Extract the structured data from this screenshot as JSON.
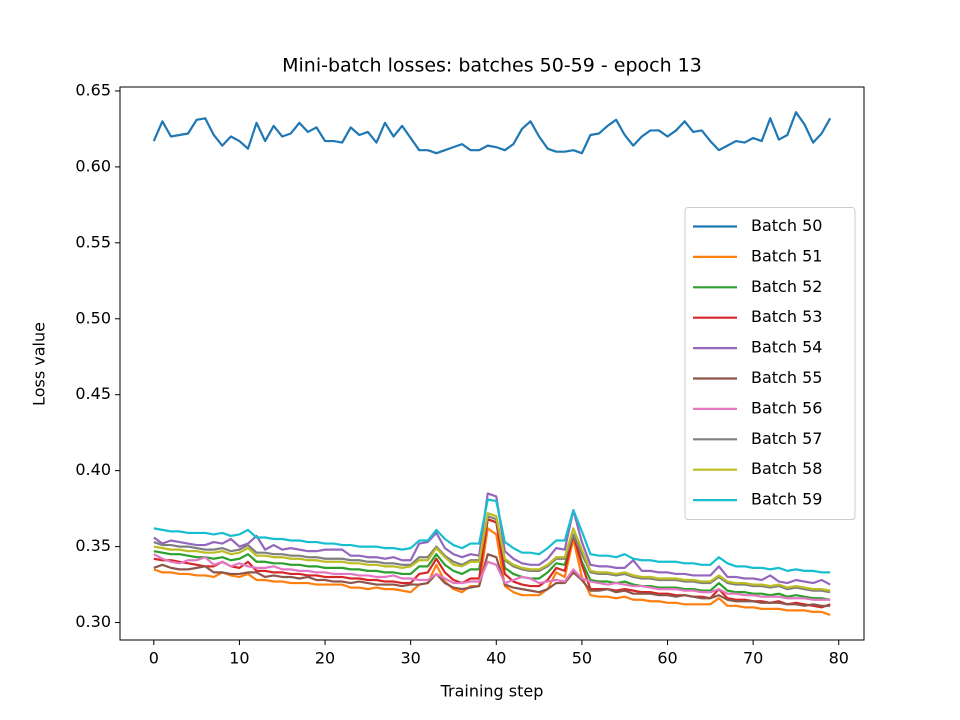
{
  "chart_data": {
    "type": "line",
    "title": "Mini-batch losses: batches 50-59 - epoch 13",
    "xlabel": "Training step",
    "ylabel": "Loss value",
    "xlim": [
      -3.95,
      82.95
    ],
    "ylim": [
      0.2885,
      0.6526
    ],
    "xticks": [
      0,
      10,
      20,
      30,
      40,
      50,
      60,
      70,
      80
    ],
    "yticks": [
      {
        "value": 0.3,
        "label": "0.30"
      },
      0.35,
      {
        "value": 0.4,
        "label": "0.40"
      },
      0.45,
      {
        "value": 0.5,
        "label": "0.50"
      },
      0.55,
      {
        "value": 0.6,
        "label": "0.60"
      },
      0.65
    ],
    "grid": false,
    "legend": "center right",
    "x": [
      0,
      1,
      2,
      3,
      4,
      5,
      6,
      7,
      8,
      9,
      10,
      11,
      12,
      13,
      14,
      15,
      16,
      17,
      18,
      19,
      20,
      21,
      22,
      23,
      24,
      25,
      26,
      27,
      28,
      29,
      30,
      31,
      32,
      33,
      34,
      35,
      36,
      37,
      38,
      39,
      40,
      41,
      42,
      43,
      44,
      45,
      46,
      47,
      48,
      49,
      50,
      51,
      52,
      53,
      54,
      55,
      56,
      57,
      58,
      59,
      60,
      61,
      62,
      63,
      64,
      65,
      66,
      67,
      68,
      69,
      70,
      71,
      72,
      73,
      74,
      75,
      76,
      77,
      78,
      79
    ],
    "series": [
      {
        "name": "Batch 50",
        "color": "#1f77b4",
        "values": [
          0.617,
          0.63,
          0.62,
          0.621,
          0.622,
          0.631,
          0.632,
          0.621,
          0.614,
          0.62,
          0.617,
          0.612,
          0.629,
          0.617,
          0.627,
          0.62,
          0.622,
          0.629,
          0.623,
          0.626,
          0.617,
          0.617,
          0.616,
          0.626,
          0.621,
          0.623,
          0.616,
          0.629,
          0.62,
          0.627,
          0.619,
          0.611,
          0.611,
          0.609,
          0.611,
          0.613,
          0.615,
          0.611,
          0.611,
          0.614,
          0.613,
          0.611,
          0.615,
          0.625,
          0.63,
          0.62,
          0.612,
          0.61,
          0.61,
          0.611,
          0.609,
          0.621,
          0.622,
          0.627,
          0.631,
          0.621,
          0.614,
          0.62,
          0.624,
          0.624,
          0.62,
          0.624,
          0.63,
          0.623,
          0.624,
          0.617,
          0.611,
          0.614,
          0.617,
          0.616,
          0.619,
          0.617,
          0.632,
          0.618,
          0.621,
          0.636,
          0.628,
          0.616,
          0.622,
          0.632
        ]
      },
      {
        "name": "Batch 51",
        "color": "#ff7f0e",
        "values": [
          0.335,
          0.333,
          0.333,
          0.332,
          0.332,
          0.331,
          0.331,
          0.33,
          0.333,
          0.331,
          0.33,
          0.332,
          0.328,
          0.328,
          0.327,
          0.327,
          0.326,
          0.326,
          0.326,
          0.325,
          0.325,
          0.325,
          0.325,
          0.323,
          0.323,
          0.322,
          0.323,
          0.322,
          0.322,
          0.321,
          0.32,
          0.325,
          0.326,
          0.338,
          0.327,
          0.322,
          0.32,
          0.324,
          0.324,
          0.362,
          0.358,
          0.324,
          0.32,
          0.318,
          0.318,
          0.318,
          0.322,
          0.333,
          0.33,
          0.355,
          0.33,
          0.318,
          0.317,
          0.317,
          0.316,
          0.317,
          0.315,
          0.315,
          0.314,
          0.314,
          0.313,
          0.313,
          0.312,
          0.312,
          0.312,
          0.312,
          0.316,
          0.311,
          0.311,
          0.31,
          0.31,
          0.309,
          0.309,
          0.309,
          0.308,
          0.308,
          0.308,
          0.307,
          0.307,
          0.305
        ]
      },
      {
        "name": "Batch 52",
        "color": "#2ca02c",
        "values": [
          0.347,
          0.346,
          0.345,
          0.345,
          0.344,
          0.343,
          0.343,
          0.342,
          0.343,
          0.341,
          0.342,
          0.345,
          0.34,
          0.34,
          0.339,
          0.339,
          0.338,
          0.338,
          0.337,
          0.337,
          0.336,
          0.336,
          0.336,
          0.335,
          0.335,
          0.334,
          0.334,
          0.333,
          0.333,
          0.332,
          0.332,
          0.337,
          0.337,
          0.345,
          0.338,
          0.334,
          0.332,
          0.335,
          0.335,
          0.368,
          0.366,
          0.336,
          0.332,
          0.33,
          0.329,
          0.329,
          0.333,
          0.339,
          0.338,
          0.357,
          0.34,
          0.328,
          0.327,
          0.327,
          0.326,
          0.327,
          0.325,
          0.324,
          0.324,
          0.323,
          0.323,
          0.323,
          0.322,
          0.322,
          0.321,
          0.321,
          0.326,
          0.321,
          0.32,
          0.32,
          0.319,
          0.319,
          0.318,
          0.319,
          0.317,
          0.318,
          0.317,
          0.316,
          0.316,
          0.315
        ]
      },
      {
        "name": "Batch 53",
        "color": "#d62728",
        "values": [
          0.342,
          0.341,
          0.341,
          0.34,
          0.339,
          0.338,
          0.337,
          0.337,
          0.34,
          0.337,
          0.336,
          0.34,
          0.334,
          0.334,
          0.333,
          0.333,
          0.332,
          0.332,
          0.331,
          0.331,
          0.33,
          0.33,
          0.33,
          0.329,
          0.329,
          0.328,
          0.328,
          0.327,
          0.327,
          0.326,
          0.326,
          0.332,
          0.333,
          0.342,
          0.333,
          0.328,
          0.326,
          0.329,
          0.329,
          0.368,
          0.366,
          0.332,
          0.327,
          0.325,
          0.324,
          0.324,
          0.328,
          0.336,
          0.334,
          0.358,
          0.338,
          0.322,
          0.322,
          0.322,
          0.321,
          0.322,
          0.321,
          0.32,
          0.32,
          0.319,
          0.319,
          0.318,
          0.318,
          0.317,
          0.317,
          0.316,
          0.322,
          0.316,
          0.315,
          0.315,
          0.314,
          0.314,
          0.313,
          0.314,
          0.312,
          0.313,
          0.312,
          0.311,
          0.31,
          0.312
        ]
      },
      {
        "name": "Batch 54",
        "color": "#9467bd",
        "values": [
          0.356,
          0.352,
          0.354,
          0.353,
          0.352,
          0.351,
          0.351,
          0.353,
          0.352,
          0.355,
          0.35,
          0.352,
          0.357,
          0.348,
          0.351,
          0.348,
          0.349,
          0.348,
          0.347,
          0.347,
          0.348,
          0.348,
          0.348,
          0.344,
          0.344,
          0.343,
          0.343,
          0.342,
          0.343,
          0.341,
          0.341,
          0.352,
          0.353,
          0.359,
          0.349,
          0.345,
          0.343,
          0.345,
          0.344,
          0.385,
          0.383,
          0.347,
          0.342,
          0.339,
          0.338,
          0.338,
          0.342,
          0.349,
          0.348,
          0.374,
          0.353,
          0.338,
          0.337,
          0.337,
          0.336,
          0.336,
          0.341,
          0.334,
          0.334,
          0.333,
          0.333,
          0.332,
          0.332,
          0.331,
          0.331,
          0.331,
          0.337,
          0.33,
          0.33,
          0.329,
          0.329,
          0.328,
          0.331,
          0.327,
          0.326,
          0.328,
          0.327,
          0.326,
          0.328,
          0.325
        ]
      },
      {
        "name": "Batch 55",
        "color": "#8c564b",
        "values": [
          0.336,
          0.338,
          0.336,
          0.335,
          0.335,
          0.336,
          0.337,
          0.333,
          0.333,
          0.332,
          0.332,
          0.333,
          0.333,
          0.33,
          0.331,
          0.33,
          0.33,
          0.329,
          0.33,
          0.328,
          0.328,
          0.327,
          0.327,
          0.326,
          0.327,
          0.326,
          0.325,
          0.325,
          0.325,
          0.324,
          0.325,
          0.325,
          0.326,
          0.332,
          0.326,
          0.323,
          0.322,
          0.323,
          0.324,
          0.345,
          0.343,
          0.325,
          0.323,
          0.322,
          0.321,
          0.32,
          0.322,
          0.326,
          0.326,
          0.333,
          0.328,
          0.321,
          0.321,
          0.322,
          0.32,
          0.321,
          0.319,
          0.319,
          0.319,
          0.318,
          0.318,
          0.317,
          0.318,
          0.317,
          0.316,
          0.316,
          0.318,
          0.315,
          0.314,
          0.314,
          0.314,
          0.313,
          0.313,
          0.313,
          0.312,
          0.312,
          0.311,
          0.312,
          0.311,
          0.311
        ]
      },
      {
        "name": "Batch 56",
        "color": "#e377c2",
        "values": [
          0.345,
          0.342,
          0.34,
          0.339,
          0.341,
          0.341,
          0.343,
          0.338,
          0.34,
          0.337,
          0.339,
          0.337,
          0.336,
          0.336,
          0.337,
          0.335,
          0.335,
          0.334,
          0.334,
          0.333,
          0.333,
          0.332,
          0.332,
          0.332,
          0.331,
          0.331,
          0.33,
          0.33,
          0.331,
          0.329,
          0.329,
          0.328,
          0.328,
          0.332,
          0.329,
          0.326,
          0.326,
          0.327,
          0.327,
          0.34,
          0.338,
          0.326,
          0.328,
          0.33,
          0.329,
          0.326,
          0.327,
          0.328,
          0.327,
          0.335,
          0.329,
          0.327,
          0.326,
          0.325,
          0.326,
          0.325,
          0.324,
          0.324,
          0.323,
          0.322,
          0.322,
          0.322,
          0.321,
          0.321,
          0.32,
          0.32,
          0.322,
          0.319,
          0.319,
          0.318,
          0.318,
          0.317,
          0.317,
          0.317,
          0.316,
          0.316,
          0.316,
          0.315,
          0.315,
          0.315
        ]
      },
      {
        "name": "Batch 57",
        "color": "#7f7f7f",
        "values": [
          0.353,
          0.351,
          0.351,
          0.35,
          0.35,
          0.349,
          0.348,
          0.348,
          0.349,
          0.347,
          0.348,
          0.351,
          0.346,
          0.346,
          0.345,
          0.345,
          0.344,
          0.344,
          0.343,
          0.343,
          0.342,
          0.342,
          0.342,
          0.341,
          0.341,
          0.34,
          0.34,
          0.339,
          0.339,
          0.338,
          0.338,
          0.343,
          0.343,
          0.35,
          0.344,
          0.34,
          0.338,
          0.341,
          0.341,
          0.37,
          0.368,
          0.341,
          0.337,
          0.335,
          0.334,
          0.334,
          0.337,
          0.342,
          0.342,
          0.358,
          0.345,
          0.333,
          0.332,
          0.332,
          0.331,
          0.332,
          0.33,
          0.329,
          0.329,
          0.328,
          0.328,
          0.328,
          0.327,
          0.327,
          0.326,
          0.326,
          0.33,
          0.326,
          0.325,
          0.325,
          0.324,
          0.324,
          0.323,
          0.324,
          0.322,
          0.323,
          0.322,
          0.321,
          0.321,
          0.32
        ]
      },
      {
        "name": "Batch 58",
        "color": "#bcbd22",
        "values": [
          0.35,
          0.349,
          0.348,
          0.348,
          0.347,
          0.347,
          0.346,
          0.346,
          0.347,
          0.345,
          0.346,
          0.349,
          0.344,
          0.344,
          0.343,
          0.343,
          0.342,
          0.342,
          0.341,
          0.341,
          0.34,
          0.34,
          0.34,
          0.339,
          0.339,
          0.338,
          0.338,
          0.337,
          0.337,
          0.336,
          0.337,
          0.341,
          0.341,
          0.349,
          0.343,
          0.338,
          0.337,
          0.34,
          0.34,
          0.372,
          0.37,
          0.342,
          0.338,
          0.336,
          0.335,
          0.335,
          0.338,
          0.343,
          0.343,
          0.362,
          0.348,
          0.334,
          0.333,
          0.333,
          0.332,
          0.333,
          0.331,
          0.33,
          0.33,
          0.329,
          0.329,
          0.329,
          0.328,
          0.328,
          0.327,
          0.327,
          0.331,
          0.327,
          0.326,
          0.326,
          0.325,
          0.325,
          0.324,
          0.325,
          0.323,
          0.324,
          0.323,
          0.322,
          0.322,
          0.321
        ]
      },
      {
        "name": "Batch 59",
        "color": "#17becf",
        "values": [
          0.362,
          0.361,
          0.36,
          0.36,
          0.359,
          0.359,
          0.359,
          0.358,
          0.359,
          0.357,
          0.358,
          0.361,
          0.356,
          0.356,
          0.355,
          0.355,
          0.354,
          0.354,
          0.353,
          0.353,
          0.352,
          0.352,
          0.351,
          0.351,
          0.35,
          0.35,
          0.35,
          0.349,
          0.349,
          0.348,
          0.349,
          0.354,
          0.354,
          0.361,
          0.355,
          0.351,
          0.349,
          0.352,
          0.352,
          0.381,
          0.38,
          0.353,
          0.349,
          0.346,
          0.346,
          0.345,
          0.349,
          0.354,
          0.354,
          0.374,
          0.36,
          0.345,
          0.344,
          0.344,
          0.343,
          0.345,
          0.342,
          0.341,
          0.341,
          0.34,
          0.34,
          0.34,
          0.339,
          0.339,
          0.338,
          0.338,
          0.343,
          0.339,
          0.337,
          0.337,
          0.336,
          0.336,
          0.335,
          0.336,
          0.334,
          0.335,
          0.334,
          0.334,
          0.333,
          0.333
        ]
      }
    ]
  }
}
